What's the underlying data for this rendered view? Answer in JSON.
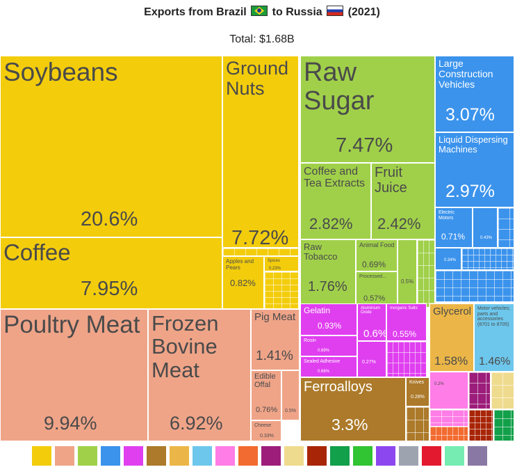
{
  "chart_data": {
    "type": "treemap",
    "title": "Exports from Brazil",
    "title_to": "to Russia",
    "title_year": "(2021)",
    "subtitle": "Total: $1.68B",
    "items": [
      {
        "label": "Soybeans",
        "value": "20.6%",
        "color": "#f3cd0c"
      },
      {
        "label": "Coffee",
        "value": "7.95%",
        "color": "#f3cd0c"
      },
      {
        "label": "Ground Nuts",
        "value": "7.72%",
        "color": "#f3cd0c"
      },
      {
        "label": "Apples and Pears",
        "value": "0.82%",
        "color": "#f3cd0c"
      },
      {
        "label": "Spices",
        "value": "0.23%",
        "color": "#f3cd0c"
      },
      {
        "label": "Raw Sugar",
        "value": "7.47%",
        "color": "#a0d04a"
      },
      {
        "label": "Coffee and Tea Extracts",
        "value": "2.82%",
        "color": "#a0d04a"
      },
      {
        "label": "Fruit Juice",
        "value": "2.42%",
        "color": "#a0d04a"
      },
      {
        "label": "Raw Tobacco",
        "value": "1.76%",
        "color": "#a0d04a"
      },
      {
        "label": "Animal Food",
        "value": "0.69%",
        "color": "#a0d04a"
      },
      {
        "label": "Processed...",
        "value": "0.57%",
        "color": "#a0d04a"
      },
      {
        "label": "",
        "value": "0.5%",
        "color": "#a0d04a"
      },
      {
        "label": "Large Construction Vehicles",
        "value": "3.07%",
        "color": "#3b93ec"
      },
      {
        "label": "Liquid Dispersing Machines",
        "value": "2.97%",
        "color": "#3b93ec"
      },
      {
        "label": "Electric Motors",
        "value": "0.71%",
        "color": "#3b93ec"
      },
      {
        "label": "",
        "value": "0.43%",
        "color": "#3b93ec"
      },
      {
        "label": "",
        "value": "0.34%",
        "color": "#3b93ec"
      },
      {
        "label": "Poultry Meat",
        "value": "9.94%",
        "color": "#efa488"
      },
      {
        "label": "Frozen Bovine Meat",
        "value": "6.92%",
        "color": "#efa488"
      },
      {
        "label": "Pig Meat",
        "value": "1.41%",
        "color": "#efa488"
      },
      {
        "label": "Edible Offal",
        "value": "0.76%",
        "color": "#efa488"
      },
      {
        "label": "",
        "value": "0.5%",
        "color": "#efa488"
      },
      {
        "label": "Cheese",
        "value": "0.33%",
        "color": "#efa488"
      },
      {
        "label": "Gelatin",
        "value": "0.93%",
        "color": "#e03ff0"
      },
      {
        "label": "Rosin",
        "value": "0.69%",
        "color": "#e03ff0"
      },
      {
        "label": "Sealed Adhesive",
        "value": "0.66%",
        "color": "#e03ff0"
      },
      {
        "label": "Aluminium Oxide",
        "value": "0.6%",
        "color": "#e03ff0"
      },
      {
        "label": "Inorganic Salts",
        "value": "0.55%",
        "color": "#e03ff0"
      },
      {
        "label": "",
        "value": "0.27%",
        "color": "#e03ff0"
      },
      {
        "label": "Ferroalloys",
        "value": "3.3%",
        "color": "#ac7a2a"
      },
      {
        "label": "Knives",
        "value": "0.28%",
        "color": "#ac7a2a"
      },
      {
        "label": "Glycerol",
        "value": "1.58%",
        "color": "#ebb647"
      },
      {
        "label": "Motor vehicles; parts and accessories (8701 to 8705)",
        "value": "1.46%",
        "color": "#6dc7ec"
      },
      {
        "label": "",
        "value": "0.2%",
        "color": "#ff7de6"
      }
    ],
    "legend_colors": [
      "#f3cd0c",
      "#efa488",
      "#a0d04a",
      "#3b93ec",
      "#e03ff0",
      "#ac7a2a",
      "#ebb647",
      "#6dc7ec",
      "#ff7de6",
      "#f26b30",
      "#9c1d7a",
      "#efdb8e",
      "#a82507",
      "#12a04a",
      "#31c433",
      "#8d47ef",
      "#9ea3b0",
      "#e3192f",
      "#76ecb3",
      "#8a78a4"
    ]
  }
}
